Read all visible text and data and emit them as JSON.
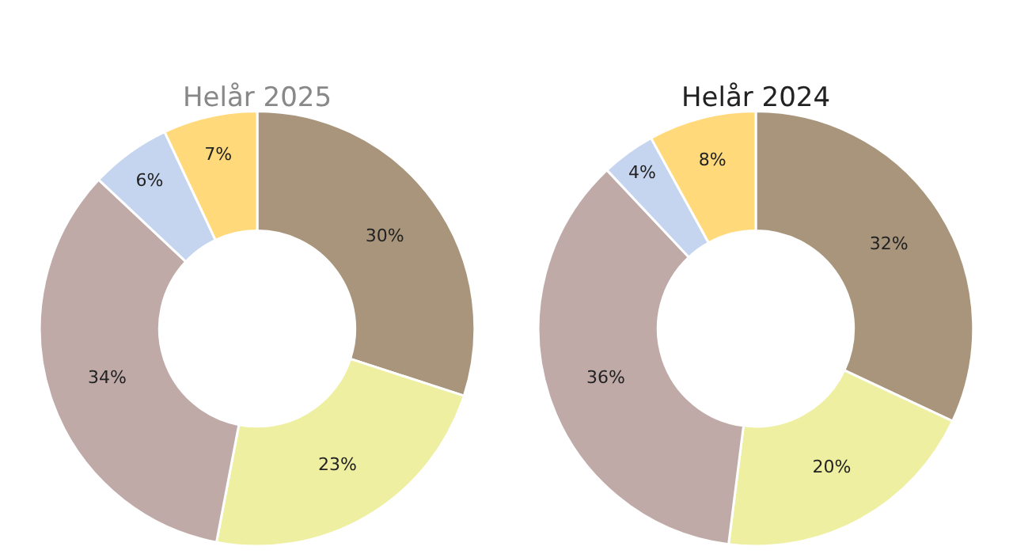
{
  "chart_data": [
    {
      "type": "donut",
      "title": "Helår 2025",
      "categories": [
        null,
        null,
        null,
        null,
        null
      ],
      "values": [
        30,
        23,
        34,
        6,
        7
      ],
      "colors": [
        "#a8957b",
        "#eeefa0",
        "#bfaaa8",
        "#c5d5f0",
        "#ffd97a"
      ],
      "value_labels": [
        "30%",
        "23%",
        "34%",
        "6%",
        "7%"
      ]
    },
    {
      "type": "donut",
      "title": "Helår 2024",
      "categories": [
        null,
        null,
        null,
        null,
        null
      ],
      "values": [
        32,
        20,
        36,
        4,
        8
      ],
      "colors": [
        "#a8957b",
        "#eeefa0",
        "#bfaaa8",
        "#c5d5f0",
        "#ffd97a"
      ],
      "value_labels": [
        "32%",
        "20%",
        "36%",
        "4%",
        "8%"
      ]
    }
  ]
}
